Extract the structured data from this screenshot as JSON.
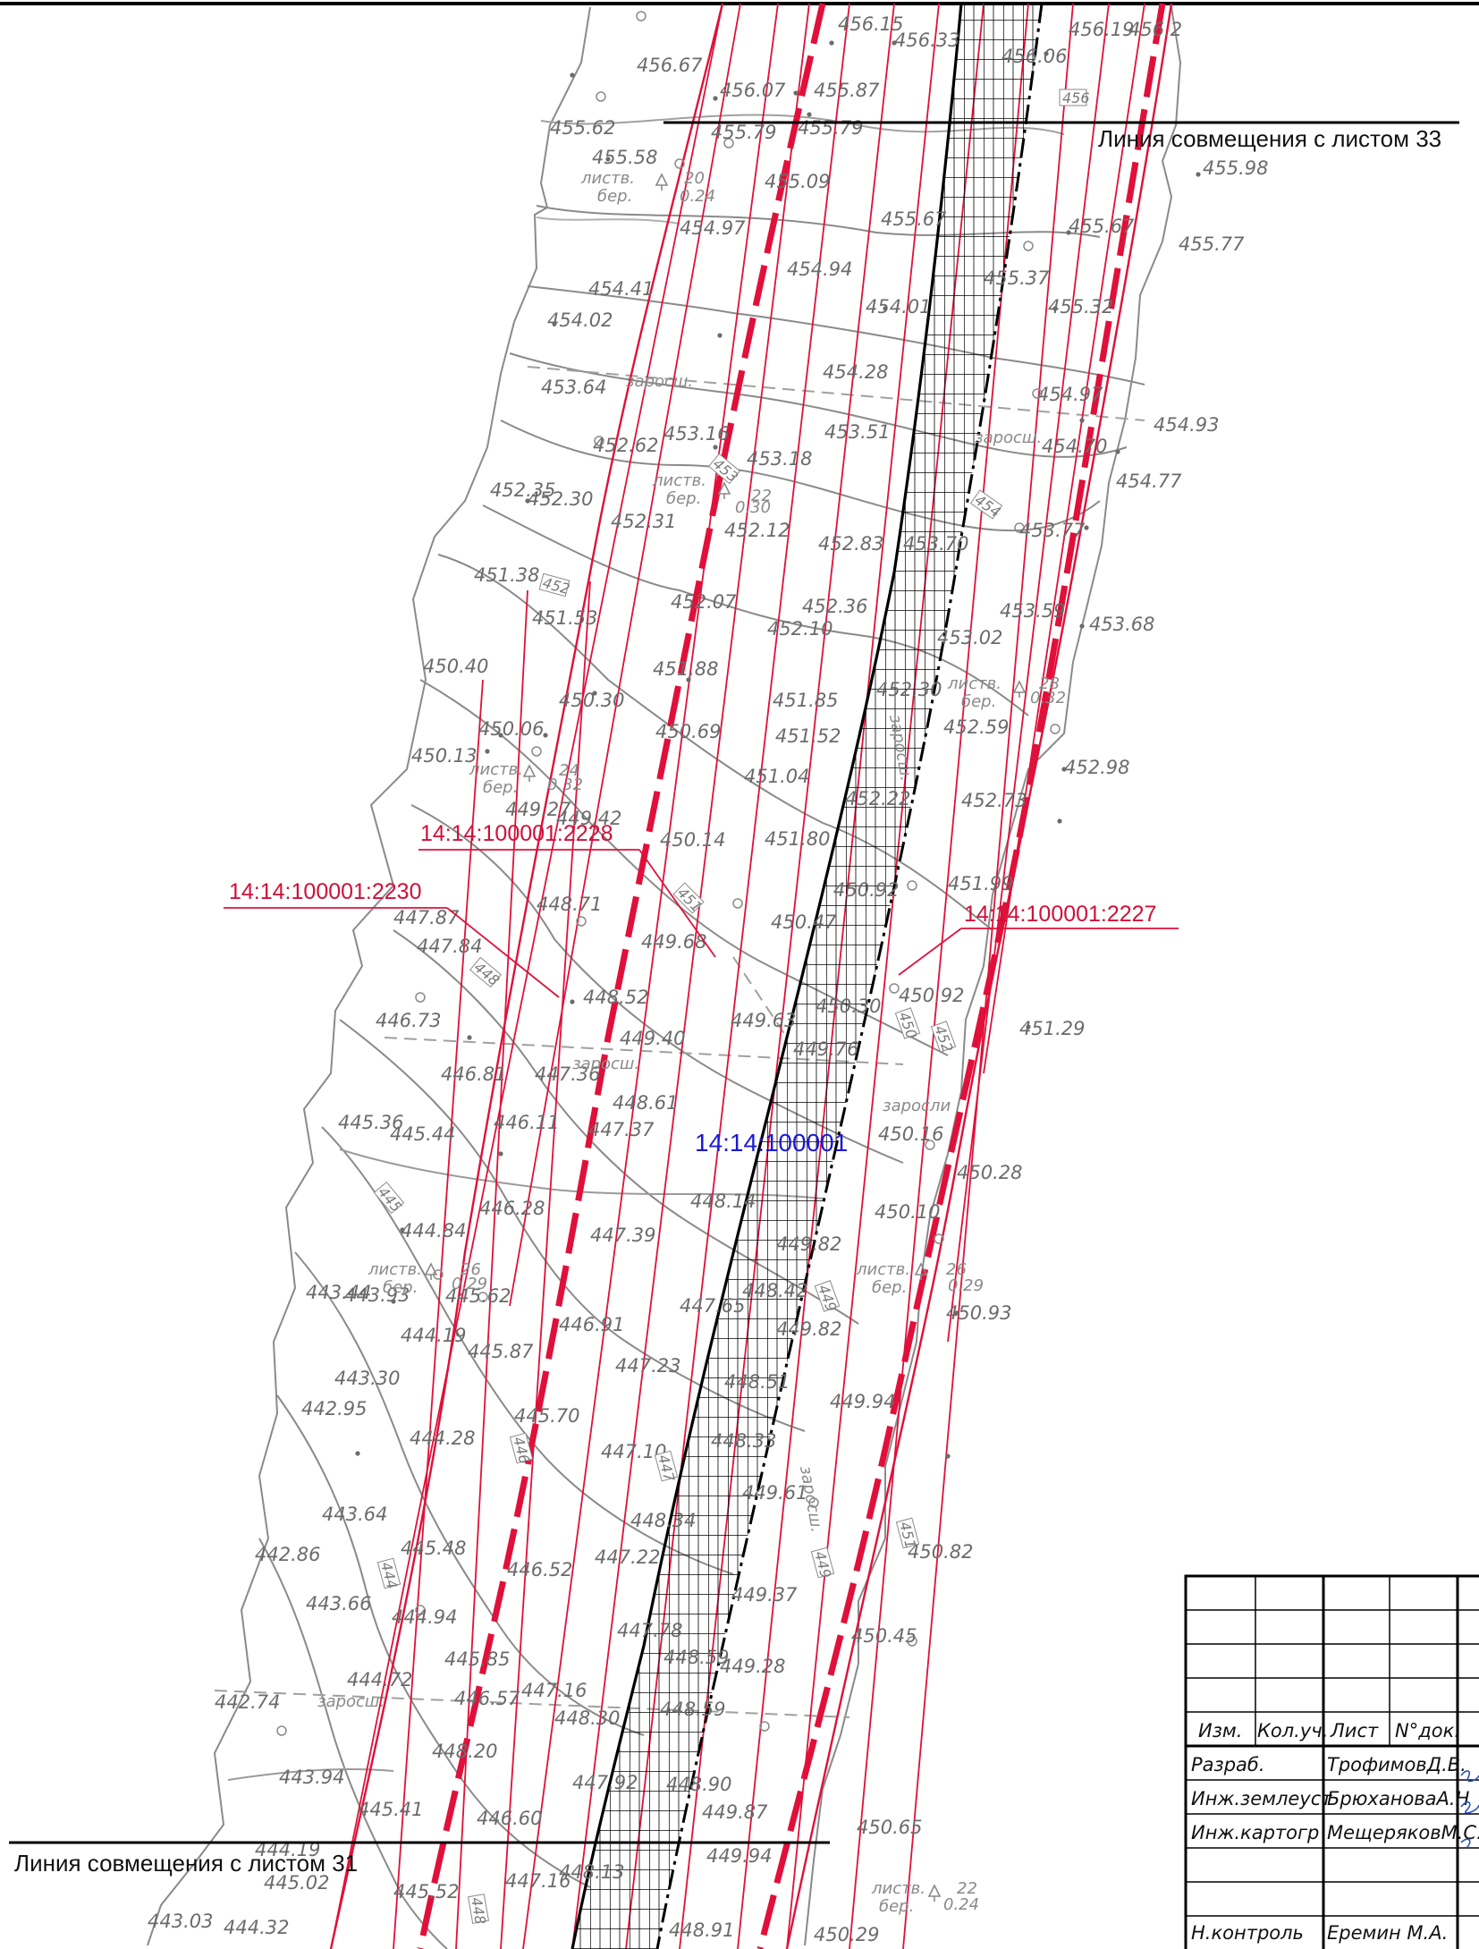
{
  "match_lines": {
    "top": "Линия совмещения с листом 33",
    "bottom": "Линия совмещения с листом 31"
  },
  "parcels": {
    "p2228": "14:14:100001:2228",
    "p2230": "14:14:100001:2230",
    "p2227": "14:14:100001:2227"
  },
  "block": "14:14:100001",
  "colors": {
    "parcel_line": "#e0103a",
    "survey_line": "#8a8a8a",
    "corridor_line": "#000000",
    "block_label": "#1a1ad8"
  },
  "vegetation": {
    "leafy": "листв.",
    "birch": "бер.",
    "thicket": "заросш.",
    "thicket2": "заросли"
  },
  "elevations": {
    "e1": "456.67",
    "e2": "455.62",
    "e3": "455.58",
    "e4": "456.07",
    "e5": "455.79",
    "e6": "455.87",
    "e7": "455.79",
    "e8": "456.15",
    "e9": "456.33",
    "e10": "456.06",
    "e11": "456.19",
    "e12": "455.98",
    "e13": "455.09",
    "e14": "454.97",
    "e15": "455.67",
    "e16": "455.77",
    "e17": "454.41",
    "e18": "454.02",
    "e19": "454.94",
    "e20": "455.37",
    "e21": "455.32",
    "e22": "454.01",
    "e23": "454.28",
    "e24": "453.64",
    "e25": "454.97",
    "e26": "454.93",
    "e27": "452.62",
    "e28": "453.16",
    "e29": "453.18",
    "e30": "453.51",
    "e31": "454.70",
    "e32": "454.77",
    "e33": "452.35",
    "e34": "452.30",
    "e35": "452.31",
    "e36": "452.12",
    "e37": "452.83",
    "e38": "453.70",
    "e39": "453.77",
    "e40": "451.38",
    "e41": "451.53",
    "e42": "452.07",
    "e43": "452.36",
    "e44": "452.10",
    "e45": "453.02",
    "e46": "453.59",
    "e47": "453.68",
    "e48": "450.40",
    "e49": "451.88",
    "e50": "450.30",
    "e51": "451.85",
    "e52": "452.30",
    "e53": "450.06",
    "e54": "450.69",
    "e55": "451.52",
    "e56": "452.59",
    "e57": "450.13",
    "e58": "451.04",
    "e59": "452.22",
    "e60": "452.98",
    "e61": "449.27",
    "e62": "449.42",
    "e63": "452.73",
    "e64": "450.14",
    "e65": "451.80",
    "e66": "451.99",
    "e67": "448.71",
    "e68": "450.92",
    "e69": "447.87",
    "e70": "450.47",
    "e71": "447.84",
    "e72": "449.68",
    "e73": "450.92",
    "e74": "448.52",
    "e75": "450.30",
    "e76": "446.73",
    "e77": "449.40",
    "e78": "449.63",
    "e79": "451.29",
    "e80": "449.76",
    "e81": "446.81",
    "e82": "447.36",
    "e83": "448.61",
    "e84": "445.36",
    "e85": "445.44",
    "e86": "446.11",
    "e87": "447.37",
    "e88": "450.16",
    "e89": "450.28",
    "e90": "448.14",
    "e91": "446.28",
    "e92": "450.10",
    "e93": "444.84",
    "e94": "447.39",
    "e95": "449.82",
    "e96": "443.44",
    "e97": "443.93",
    "e98": "445.62",
    "e99": "448.42",
    "e100": "449.82",
    "e101": "450.93",
    "e102": "444.19",
    "e103": "446.91",
    "e104": "445.87",
    "e105": "447.65",
    "e106": "447.23",
    "e107": "448.51",
    "e108": "443.30",
    "e109": "442.95",
    "e110": "449.94",
    "e111": "445.70",
    "e112": "444.28",
    "e113": "447.10",
    "e114": "448.33",
    "e115": "449.61",
    "e116": "443.64",
    "e117": "448.34",
    "e118": "442.86",
    "e119": "445.48",
    "e120": "446.52",
    "e121": "447.22",
    "e122": "450.82",
    "e123": "443.66",
    "e124": "449.37",
    "e125": "444.94",
    "e126": "447.78",
    "e127": "450.45",
    "e128": "445.85",
    "e129": "448.59",
    "e130": "449.28",
    "e131": "444.72",
    "e132": "446.57",
    "e133": "447.16",
    "e134": "442.74",
    "e135": "448.59",
    "e136": "448.30",
    "e137": "448.20",
    "e138": "443.94",
    "e139": "447.92",
    "e140": "448.90",
    "e141": "445.41",
    "e142": "446.60",
    "e143": "449.87",
    "e144": "450.65",
    "e145": "444.19",
    "e146": "449.94",
    "e147": "445.02",
    "e148": "445.52",
    "e149": "447.16",
    "e150": "448.13",
    "e151": "443.03",
    "e152": "444.32",
    "e153": "448.91",
    "e154": "450.29",
    "e155": "456.2"
  },
  "contour_labels": {
    "c456": "456",
    "c454": "454",
    "c452": "452",
    "c451": "451",
    "c448": "448",
    "c445": "445",
    "c447": "447",
    "c450": "450",
    "c449": "449",
    "c449b": "449",
    "c446": "446",
    "c444": "444",
    "c453": "453",
    "c451b": "451",
    "c452b": "452",
    "c448b": "448"
  },
  "tree_notes": {
    "t1a": "20",
    "t1b": "0.24",
    "t2a": "22",
    "t2b": "0.30",
    "t3a": "28",
    "t3b": "0.32",
    "t4a": "24",
    "t4b": "0.32",
    "t5a": "26",
    "t5b": "0.29",
    "t6a": "26",
    "t6b": "0.29",
    "t7a": "22",
    "t7b": "0.24"
  },
  "title_block": {
    "col_izm": "Изм.",
    "col_kol": "Кол.уч.",
    "col_list": "Лист",
    "col_doc": "N°док.",
    "role1": "Разраб.",
    "name1": "ТрофимовД.В.",
    "role2": "Инж.землеуст",
    "name2": "БрюхановаА.Н",
    "role3": "Инж.картогр",
    "name3": "МещеряковМ.С.",
    "role4": "Н.контроль",
    "name4": "Еремин М.А."
  }
}
